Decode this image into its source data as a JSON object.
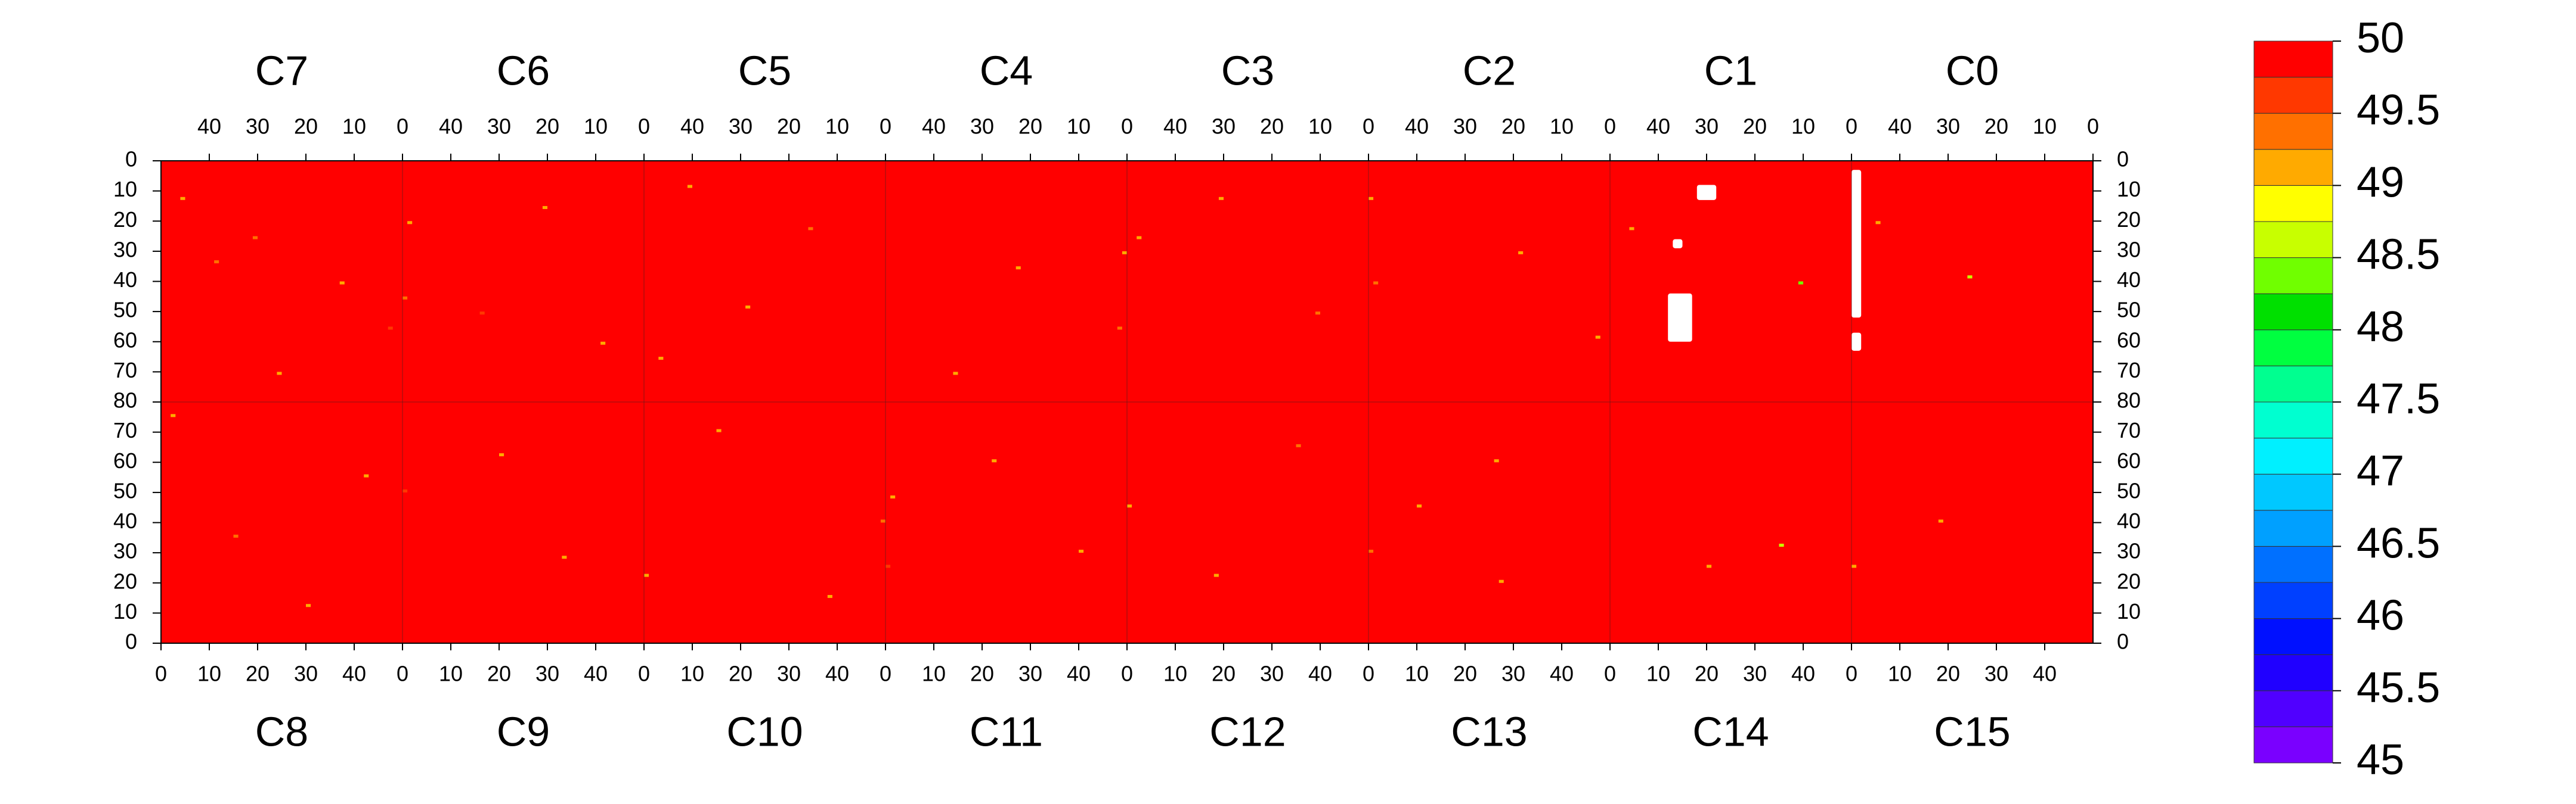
{
  "chart_data": {
    "type": "heatmap",
    "top_panels": [
      "C7",
      "C6",
      "C5",
      "C4",
      "C3",
      "C2",
      "C1",
      "C0"
    ],
    "bottom_panels": [
      "C8",
      "C9",
      "C10",
      "C11",
      "C12",
      "C13",
      "C14",
      "C15"
    ],
    "xlim": [
      0,
      50
    ],
    "xticks": [
      0,
      10,
      20,
      30,
      40
    ],
    "ylim": [
      0,
      80
    ],
    "yticks": [
      0,
      10,
      20,
      30,
      40,
      50,
      60,
      70,
      80
    ],
    "background": 50,
    "hot_cells": {
      "panel": [
        "C7",
        "C7",
        "C7",
        "C7",
        "C7",
        "C7",
        "C6",
        "C6",
        "C6",
        "C6",
        "C6",
        "C5",
        "C5",
        "C5",
        "C5",
        "C4",
        "C4",
        "C4",
        "C4",
        "C3",
        "C3",
        "C3",
        "C2",
        "C2",
        "C2",
        "C2",
        "C1",
        "C1",
        "C0",
        "C0",
        "C8",
        "C8",
        "C8",
        "C8",
        "C9",
        "C9",
        "C9",
        "C10",
        "C10",
        "C10",
        "C10",
        "C11",
        "C11",
        "C11",
        "C11",
        "C12",
        "C12",
        "C12",
        "C13",
        "C13",
        "C13",
        "C13",
        "C14",
        "C14",
        "C15",
        "C15"
      ],
      "x": [
        45,
        30,
        12,
        2,
        25,
        38,
        48,
        49,
        20,
        8,
        33,
        46,
        15,
        28,
        40,
        0,
        1,
        22,
        35,
        47,
        10,
        30,
        49,
        48,
        2,
        18,
        45,
        10,
        44,
        25,
        2,
        15,
        30,
        42,
        0,
        20,
        33,
        49,
        0,
        15,
        38,
        0,
        1,
        22,
        40,
        0,
        18,
        35,
        0,
        27,
        26,
        10,
        35,
        20,
        0,
        18
      ],
      "y": [
        12,
        25,
        40,
        55,
        70,
        33,
        20,
        45,
        15,
        60,
        50,
        65,
        22,
        48,
        8,
        30,
        55,
        35,
        70,
        25,
        50,
        12,
        12,
        40,
        58,
        30,
        22,
        40,
        20,
        38,
        75,
        35,
        12,
        55,
        50,
        62,
        28,
        40,
        22,
        70,
        15,
        25,
        48,
        60,
        30,
        45,
        22,
        65,
        30,
        20,
        60,
        45,
        32,
        25,
        25,
        40
      ],
      "values": [
        49,
        49.25,
        49,
        49.5,
        49,
        49.25,
        49,
        49.25,
        49,
        49,
        49.5,
        49,
        49.25,
        49,
        49,
        49,
        49.25,
        49,
        49,
        49,
        49.25,
        49,
        49,
        49.25,
        49,
        49,
        49,
        48.25,
        49,
        48.5,
        49,
        49.25,
        49,
        49,
        49.5,
        49,
        49,
        49.25,
        49,
        49,
        49,
        49.5,
        49,
        49,
        49,
        49,
        49,
        49.25,
        49.25,
        49,
        49,
        49,
        48.5,
        49,
        49,
        49
      ]
    },
    "missing_cells": {
      "panel": [
        "C1",
        "C1",
        "C1",
        "C0",
        "C0"
      ],
      "x": [
        [
          28,
          32
        ],
        [
          35,
          37
        ],
        [
          33,
          38
        ],
        [
          48,
          50
        ],
        [
          48,
          50
        ]
      ],
      "y": [
        [
          8,
          13
        ],
        [
          26,
          29
        ],
        [
          44,
          60
        ],
        [
          3,
          52
        ],
        [
          57,
          63
        ]
      ]
    },
    "colorbar": {
      "zlim": [
        45,
        50
      ],
      "ticks": [
        45,
        45.5,
        46,
        46.5,
        47,
        47.5,
        48,
        48.5,
        49,
        49.5,
        50
      ],
      "colors": [
        "#7a00ff",
        "#5000ff",
        "#2000ff",
        "#0010ff",
        "#0040ff",
        "#0070ff",
        "#00a0ff",
        "#00c8ff",
        "#00f0ff",
        "#00ffd0",
        "#00ff90",
        "#00ff40",
        "#00e000",
        "#70ff00",
        "#c8ff00",
        "#ffff00",
        "#ffaa00",
        "#ff7000",
        "#ff3800",
        "#ff0000"
      ]
    }
  }
}
